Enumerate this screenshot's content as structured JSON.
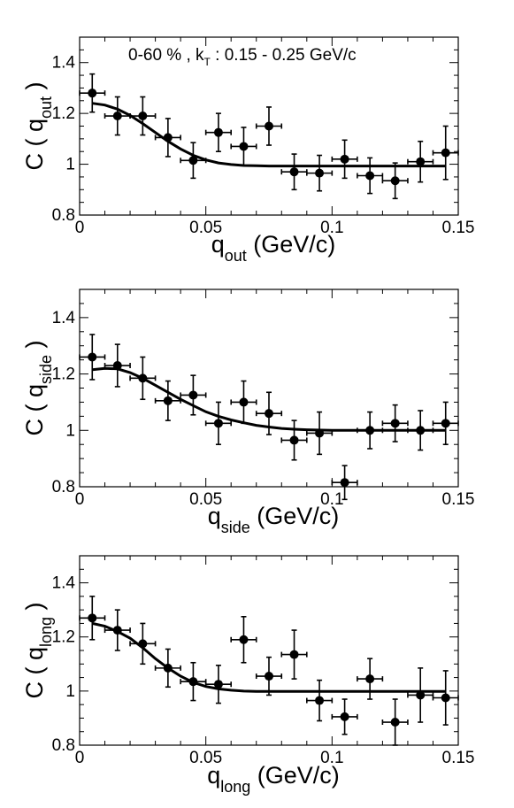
{
  "chart_data": [
    {
      "type": "scatter",
      "annotation": {
        "pre": "0-60 % , k",
        "sub": "T",
        "post": " : 0.15 - 0.25 GeV/c"
      },
      "xlabel": {
        "main": "q",
        "sub": "out",
        "post": " (GeV/c)"
      },
      "ylabel": {
        "main": "C ( q",
        "sub": "out",
        "post": " )"
      },
      "xlim": [
        0,
        0.15
      ],
      "ylim": [
        0.8,
        1.5
      ],
      "xticks": [
        "0",
        "0.05",
        "0.1",
        "0.15"
      ],
      "yticks": [
        "0.8",
        "1",
        "1.2",
        "1.4"
      ],
      "points": {
        "x": [
          0.005,
          0.015,
          0.025,
          0.035,
          0.045,
          0.055,
          0.065,
          0.075,
          0.085,
          0.095,
          0.105,
          0.115,
          0.125,
          0.135,
          0.145
        ],
        "y": [
          1.28,
          1.19,
          1.19,
          1.105,
          1.015,
          1.125,
          1.07,
          1.15,
          0.97,
          0.965,
          1.02,
          0.955,
          0.935,
          1.01,
          1.045
        ],
        "yerr": [
          0.075,
          0.075,
          0.075,
          0.075,
          0.07,
          0.075,
          0.075,
          0.075,
          0.07,
          0.07,
          0.075,
          0.07,
          0.07,
          0.08,
          0.105
        ],
        "xerr": 0.005
      },
      "fit": {
        "x": [
          0.005,
          0.01,
          0.015,
          0.02,
          0.025,
          0.03,
          0.035,
          0.04,
          0.045,
          0.05,
          0.055,
          0.06,
          0.065,
          0.07,
          0.075,
          0.08,
          0.085,
          0.09,
          0.095,
          0.1,
          0.11,
          0.12,
          0.13,
          0.14,
          0.145
        ],
        "y": [
          1.24,
          1.233,
          1.217,
          1.192,
          1.16,
          1.125,
          1.09,
          1.06,
          1.035,
          1.017,
          1.005,
          0.999,
          0.995,
          0.994,
          0.993,
          0.993,
          0.993,
          0.993,
          0.993,
          0.993,
          0.993,
          0.993,
          0.993,
          0.993,
          0.993
        ]
      }
    },
    {
      "type": "scatter",
      "xlabel": {
        "main": "q",
        "sub": "side",
        "post": " (GeV/c)"
      },
      "ylabel": {
        "main": "C ( q",
        "sub": "side",
        "post": " )"
      },
      "xlim": [
        0,
        0.15
      ],
      "ylim": [
        0.8,
        1.5
      ],
      "xticks": [
        "0",
        "0.05",
        "0.1",
        "0.15"
      ],
      "yticks": [
        "0.8",
        "1",
        "1.2",
        "1.4"
      ],
      "points": {
        "x": [
          0.005,
          0.015,
          0.025,
          0.035,
          0.045,
          0.055,
          0.065,
          0.075,
          0.085,
          0.095,
          0.105,
          0.115,
          0.125,
          0.135,
          0.145
        ],
        "y": [
          1.26,
          1.23,
          1.185,
          1.105,
          1.125,
          1.025,
          1.1,
          1.06,
          0.965,
          0.99,
          0.815,
          1.0,
          1.025,
          1.0,
          1.025
        ],
        "yerr": [
          0.08,
          0.075,
          0.075,
          0.07,
          0.07,
          0.075,
          0.075,
          0.075,
          0.07,
          0.075,
          0.06,
          0.065,
          0.065,
          0.07,
          0.075
        ],
        "xerr": 0.005
      },
      "fit": {
        "x": [
          0.005,
          0.01,
          0.015,
          0.02,
          0.025,
          0.03,
          0.035,
          0.04,
          0.045,
          0.05,
          0.055,
          0.06,
          0.065,
          0.07,
          0.075,
          0.08,
          0.085,
          0.09,
          0.1,
          0.11,
          0.12,
          0.13,
          0.14,
          0.145
        ],
        "y": [
          1.215,
          1.22,
          1.218,
          1.205,
          1.185,
          1.16,
          1.135,
          1.11,
          1.088,
          1.066,
          1.05,
          1.037,
          1.027,
          1.018,
          1.012,
          1.007,
          1.004,
          1.002,
          1.0,
          1.0,
          1.0,
          1.0,
          1.0,
          1.0
        ]
      }
    },
    {
      "type": "scatter",
      "xlabel": {
        "main": "q",
        "sub": "long",
        "post": " (GeV/c)"
      },
      "ylabel": {
        "main": "C ( q",
        "sub": "long",
        "post": " )"
      },
      "xlim": [
        0,
        0.15
      ],
      "ylim": [
        0.8,
        1.5
      ],
      "xticks": [
        "0",
        "0.05",
        "0.1",
        "0.15"
      ],
      "yticks": [
        "0.8",
        "1",
        "1.2",
        "1.4"
      ],
      "points": {
        "x": [
          0.005,
          0.015,
          0.025,
          0.035,
          0.045,
          0.055,
          0.065,
          0.075,
          0.085,
          0.095,
          0.105,
          0.115,
          0.125,
          0.135,
          0.145
        ],
        "y": [
          1.27,
          1.225,
          1.175,
          1.085,
          1.035,
          1.025,
          1.19,
          1.055,
          1.135,
          0.965,
          0.905,
          1.045,
          0.885,
          0.985,
          0.975
        ],
        "yerr": [
          0.08,
          0.075,
          0.075,
          0.07,
          0.07,
          0.07,
          0.085,
          0.07,
          0.09,
          0.075,
          0.065,
          0.075,
          0.085,
          0.1,
          0.1
        ],
        "xerr": 0.005
      },
      "fit": {
        "x": [
          0.005,
          0.01,
          0.015,
          0.02,
          0.025,
          0.03,
          0.035,
          0.04,
          0.045,
          0.05,
          0.055,
          0.06,
          0.065,
          0.07,
          0.08,
          0.09,
          0.1,
          0.11,
          0.12,
          0.13,
          0.14,
          0.145
        ],
        "y": [
          1.25,
          1.24,
          1.22,
          1.195,
          1.16,
          1.12,
          1.085,
          1.055,
          1.032,
          1.017,
          1.008,
          1.003,
          1.0,
          0.999,
          0.999,
          0.999,
          0.999,
          0.999,
          0.999,
          0.999,
          0.999,
          0.999
        ]
      }
    }
  ]
}
